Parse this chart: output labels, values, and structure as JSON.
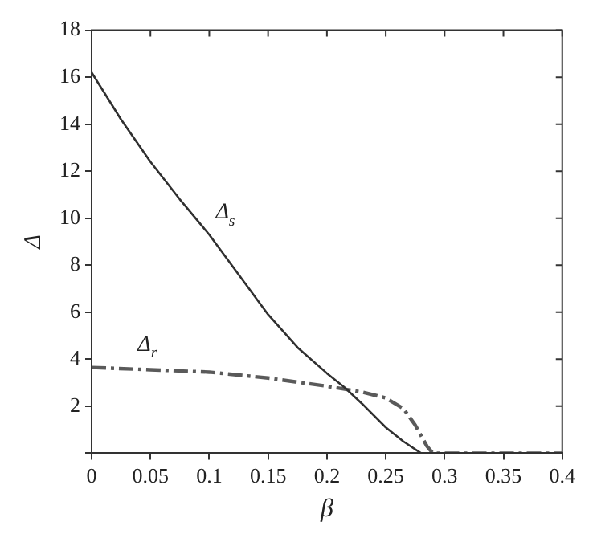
{
  "chart_data": {
    "type": "line",
    "xlabel": "β",
    "ylabel": "Δ",
    "xlim": [
      0,
      0.4
    ],
    "xticks": [
      0,
      0.05,
      0.1,
      0.15,
      0.2,
      0.25,
      0.3,
      0.35,
      0.4
    ],
    "ylim": [
      0,
      18
    ],
    "yticks": [
      {
        "value": 0,
        "label": null
      },
      2,
      4,
      6,
      8,
      10,
      12,
      14,
      16,
      18
    ],
    "grid": false,
    "legend": false,
    "marker": "none",
    "series": [
      {
        "name": "Δ$_{s}$",
        "color": "#303030",
        "line_style": "solid",
        "x": [
          0,
          0.025,
          0.05,
          0.075,
          0.1,
          0.125,
          0.15,
          0.175,
          0.2,
          0.215,
          0.23,
          0.25,
          0.265,
          0.28,
          0.29,
          0.3,
          0.35,
          0.4
        ],
        "values": [
          16.2,
          14.2,
          12.4,
          10.8,
          9.3,
          7.6,
          5.9,
          4.5,
          3.4,
          2.8,
          2.1,
          1.1,
          0.5,
          0,
          0,
          0,
          0,
          0
        ]
      },
      {
        "name": "Δ$_{r}$",
        "color": "#5a5a5a",
        "line_style": "dashed",
        "x": [
          0,
          0.05,
          0.1,
          0.15,
          0.2,
          0.23,
          0.25,
          0.265,
          0.275,
          0.285,
          0.29,
          0.3,
          0.35,
          0.4
        ],
        "values": [
          3.65,
          3.55,
          3.45,
          3.2,
          2.85,
          2.6,
          2.35,
          1.9,
          1.2,
          0.3,
          0,
          0,
          0,
          0
        ]
      }
    ]
  }
}
